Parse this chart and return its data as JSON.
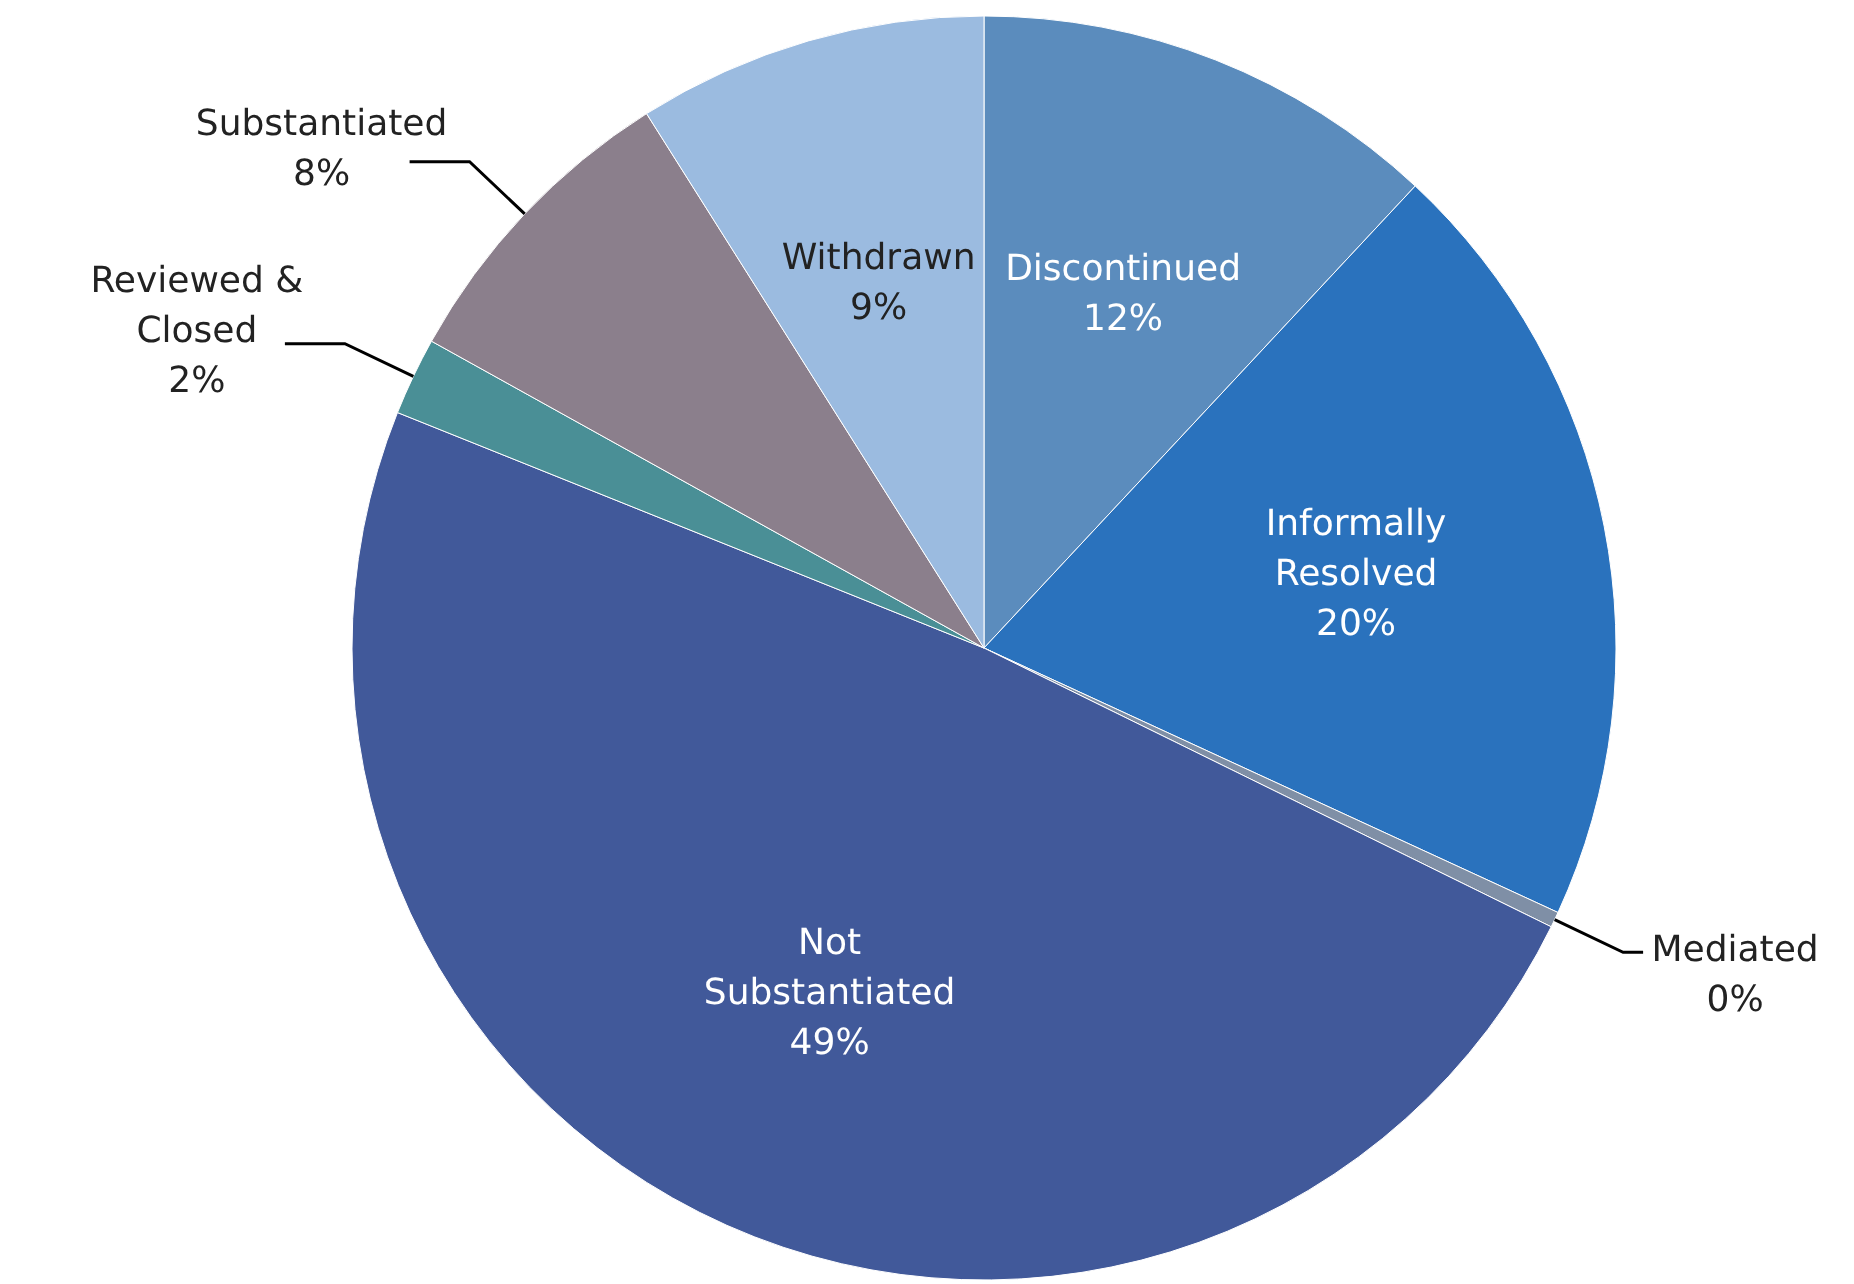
{
  "chart_data": {
    "type": "pie",
    "categories": [
      "Discontinued",
      "Informally Resolved",
      "Mediated",
      "Not Substantiated",
      "Reviewed & Closed",
      "Substantiated",
      "Withdrawn"
    ],
    "values": [
      12,
      20,
      0.4,
      49,
      2,
      8,
      9
    ],
    "value_labels": [
      "12%",
      "20%",
      "0%",
      "49%",
      "2%",
      "8%",
      "9%"
    ],
    "colors": [
      "#5b8cbd",
      "#2a72bd",
      "#7f8fa6",
      "#41599a",
      "#4a8f96",
      "#8b7f8c",
      "#9bbbe0"
    ]
  }
}
